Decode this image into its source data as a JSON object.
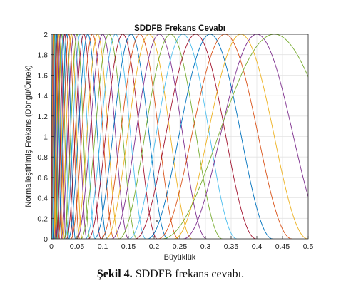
{
  "chart_data": {
    "type": "line",
    "title": "SDDFB Frekans Cevabı",
    "xlabel": "Büyüklük",
    "ylabel": "Normalleştirilmiş Frekans (Döngü/Örnek)",
    "xlim": [
      0,
      0.5
    ],
    "ylim": [
      0,
      2
    ],
    "xticks": [
      "0",
      "0.05",
      "0.1",
      "0.15",
      "0.2",
      "0.25",
      "0.3",
      "0.35",
      "0.4",
      "0.45",
      "0.5"
    ],
    "yticks": [
      "0",
      "0.2",
      "0.4",
      "0.6",
      "0.8",
      "1",
      "1.2",
      "1.4",
      "1.6",
      "1.8",
      "2"
    ],
    "grid": true,
    "legend": "none",
    "series_count": 40,
    "series_peak_magnitude": 2,
    "series_peaks_x": [
      0.0027,
      0.0035,
      0.0045,
      0.0055,
      0.0068,
      0.008,
      0.0095,
      0.011,
      0.013,
      0.015,
      0.0175,
      0.02,
      0.023,
      0.026,
      0.03,
      0.034,
      0.039,
      0.044,
      0.05,
      0.056,
      0.063,
      0.071,
      0.08,
      0.09,
      0.1,
      0.112,
      0.125,
      0.139,
      0.155,
      0.172,
      0.19,
      0.21,
      0.232,
      0.256,
      0.281,
      0.309,
      0.338,
      0.369,
      0.4,
      0.434
    ],
    "colors": [
      "#0072BD",
      "#D95319",
      "#EDB120",
      "#7E2F8E",
      "#77AC30",
      "#4DBEEE",
      "#A2142F"
    ]
  },
  "caption": {
    "label": "Şekil 4.",
    "text": " SDDFB frekans cevabı."
  }
}
